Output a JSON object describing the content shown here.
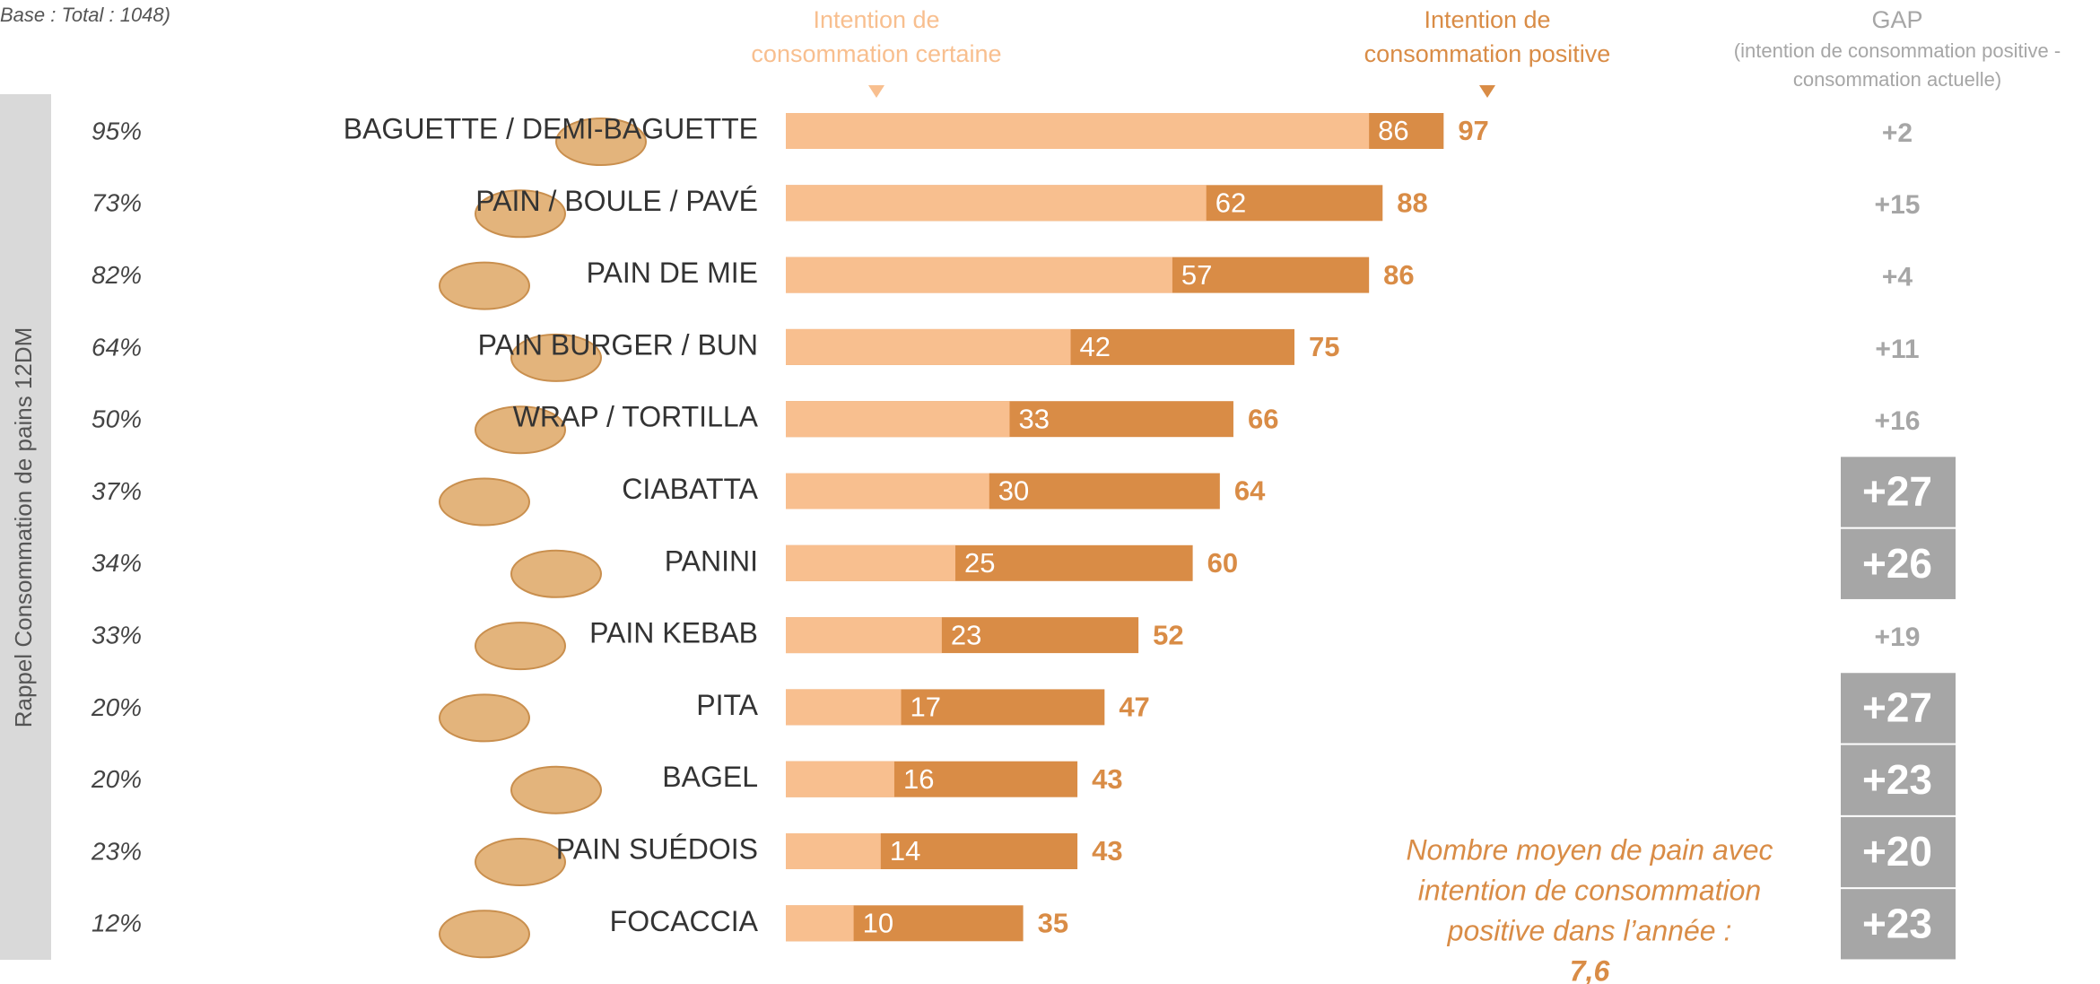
{
  "chart_data": {
    "type": "bar",
    "base_note": "Base : Total : 1048)",
    "side_label": "Rappel Consommation de pains 12DM",
    "categories": [
      "BAGUETTE / DEMI-BAGUETTE",
      "PAIN / BOULE / PAVÉ",
      "PAIN DE MIE",
      "PAIN BURGER / BUN",
      "WRAP / TORTILLA",
      "CIABATTA",
      "PANINI",
      "PAIN KEBAB",
      "PITA",
      "BAGEL",
      "PAIN SUÉDOIS",
      "FOCACCIA"
    ],
    "consumption": {
      "values": [
        95,
        73,
        82,
        64,
        50,
        37,
        34,
        33,
        20,
        20,
        23,
        12
      ],
      "value_labels": [
        "95%",
        "73%",
        "82%",
        "64%",
        "50%",
        "37%",
        "34%",
        "33%",
        "20%",
        "20%",
        "23%",
        "12%"
      ]
    },
    "series": [
      {
        "name": "Intention de consommation positive",
        "color": "#d98c46",
        "values": [
          97,
          88,
          86,
          75,
          66,
          64,
          60,
          52,
          47,
          43,
          43,
          35
        ]
      },
      {
        "name": "Intention de consommation certaine",
        "color": "#f8bf8f",
        "values": [
          86,
          62,
          57,
          42,
          33,
          30,
          25,
          23,
          17,
          16,
          14,
          10
        ]
      }
    ],
    "gap": {
      "title": "GAP",
      "subtitle": [
        "(intention de consommation positive -",
        "consommation actuelle)"
      ],
      "values": [
        2,
        15,
        4,
        11,
        16,
        27,
        26,
        19,
        27,
        23,
        20,
        23
      ],
      "value_labels": [
        "+2",
        "+15",
        "+4",
        "+11",
        "+16",
        "+27",
        "+26",
        "+19",
        "+27",
        "+23",
        "+20",
        "+23"
      ],
      "highlighted": [
        false,
        false,
        false,
        false,
        false,
        true,
        true,
        false,
        true,
        true,
        true,
        true
      ]
    },
    "note": [
      "Nombre moyen de pain avec",
      "intention de consommation",
      "positive dans l’année :",
      "7,6"
    ]
  }
}
